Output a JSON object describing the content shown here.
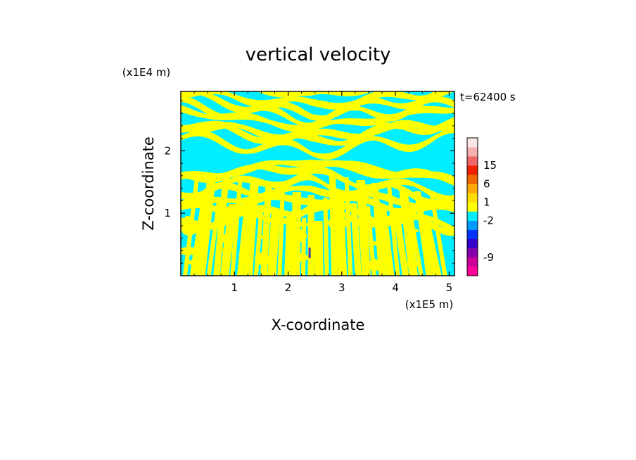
{
  "chart_data": {
    "type": "heatmap",
    "title": "vertical velocity",
    "time_label": "t=62400 s",
    "xlabel": "X-coordinate",
    "ylabel": "Z-coordinate",
    "x_multiplier": "(x1E5 m)",
    "y_multiplier": "(x1E4 m)",
    "xlim": [
      0,
      5.1
    ],
    "ylim": [
      0,
      2.95
    ],
    "x_ticks": [
      1,
      2,
      3,
      4,
      5
    ],
    "y_ticks": [
      1,
      2
    ],
    "field_colors": {
      "positive_band": "#ffff00",
      "negative_band": "#00eeff"
    },
    "feature": {
      "x": 2.4,
      "z_range": [
        0.28,
        0.45
      ]
    },
    "colorbar": {
      "label_values": [
        "15",
        "6",
        "1",
        "-2",
        "-9"
      ],
      "bands": [
        {
          "color": "#ff0099"
        },
        {
          "color": "#cc0099"
        },
        {
          "color": "#8800aa"
        },
        {
          "color": "#3300cc"
        },
        {
          "color": "#0033ff"
        },
        {
          "color": "#0099ff"
        },
        {
          "color": "#00eeff"
        },
        {
          "color": "#ffff00"
        },
        {
          "color": "#ffdd00"
        },
        {
          "color": "#ffaa00"
        },
        {
          "color": "#ee6600"
        },
        {
          "color": "#ee2200"
        },
        {
          "color": "#ee6666"
        },
        {
          "color": "#f5b0b0"
        },
        {
          "color": "#fbe6e6"
        }
      ]
    }
  }
}
